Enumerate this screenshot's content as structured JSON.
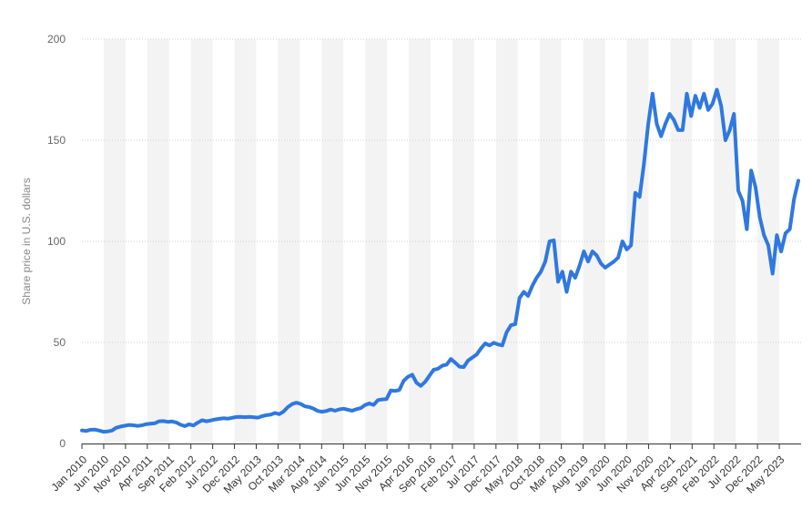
{
  "colors": {
    "line": "#2f78e0",
    "band": "#f3f3f3",
    "grid": "#cfcfcf",
    "axis": "#333333"
  },
  "chart_data": {
    "type": "line",
    "title": "",
    "xlabel": "",
    "ylabel": "Share price in U.S. dollars",
    "ylim": [
      0,
      200
    ],
    "yticks": [
      0,
      50,
      100,
      150,
      200
    ],
    "grid": true,
    "x_tick_labels": [
      "Jan 2010",
      "Jun 2010",
      "Nov 2010",
      "Apr 2011",
      "Sep 2011",
      "Feb 2012",
      "Jul 2012",
      "Dec 2012",
      "May 2013",
      "Oct 2013",
      "Mar 2014",
      "Aug 2014",
      "Jan 2015",
      "Jun 2015",
      "Nov 2015",
      "Apr 2016",
      "Sep 2016",
      "Feb 2017",
      "Jul 2017",
      "Dec 2017",
      "May 2018",
      "Oct 2018",
      "Mar 2019",
      "Aug 2019",
      "Jan 2020",
      "Jun 2020",
      "Nov 2020",
      "Apr 2021",
      "Sep 2021",
      "Feb 2022",
      "Jul 2022",
      "Dec 2022",
      "May 2023"
    ],
    "x_start": "Jan 2010",
    "x_end": "Jul 2023",
    "series": [
      {
        "values": [
          6.5,
          6.2,
          6.8,
          6.9,
          6.4,
          5.8,
          6.0,
          6.4,
          7.8,
          8.4,
          8.8,
          9.2,
          9.0,
          8.7,
          9.0,
          9.6,
          9.8,
          10.0,
          11.0,
          11.1,
          10.7,
          10.9,
          10.4,
          9.3,
          8.6,
          9.5,
          8.9,
          10.3,
          11.5,
          11.0,
          11.4,
          11.9,
          12.2,
          12.5,
          12.3,
          12.7,
          13.1,
          13.2,
          13.0,
          13.2,
          13.0,
          12.8,
          13.5,
          14.0,
          14.3,
          15.1,
          14.5,
          15.8,
          18.0,
          19.5,
          20.2,
          19.6,
          18.4,
          18.0,
          17.2,
          16.1,
          15.7,
          16.1,
          16.8,
          16.2,
          16.9,
          17.2,
          16.7,
          16.2,
          17.0,
          17.5,
          19.0,
          19.8,
          19.1,
          21.5,
          21.8,
          22.0,
          26.2,
          26.0,
          26.5,
          31.0,
          33.0,
          34.0,
          30.0,
          28.5,
          30.5,
          33.5,
          36.5,
          37.0,
          38.5,
          39.0,
          41.8,
          40.0,
          38.0,
          37.8,
          41.0,
          42.5,
          44.0,
          47.0,
          49.5,
          48.5,
          49.8,
          49.0,
          48.5,
          55.0,
          58.5,
          59.0,
          72.0,
          75.0,
          73.0,
          78.0,
          82.0,
          85.0,
          90.0,
          100.0,
          100.5,
          80.0,
          85.0,
          75.0,
          85.0,
          82.0,
          88.0,
          95.0,
          90.0,
          95.0,
          93.0,
          89.0,
          87.0,
          88.5,
          90.0,
          92.0,
          100.0,
          96.0,
          98.0,
          124.0,
          122.0,
          138.0,
          158.0,
          173.0,
          158.0,
          152.0,
          158.0,
          163.0,
          160.0,
          155.0,
          155.0,
          173.0,
          162.0,
          172.0,
          166.0,
          173.0,
          165.0,
          168.0,
          175.0,
          167.0,
          150.0,
          155.0,
          163.0,
          125.0,
          120.0,
          106.0,
          135.0,
          127.0,
          112.0,
          103.0,
          98.0,
          84.0,
          103.0,
          95.0,
          104.0,
          106.0,
          121.0,
          130.0
        ]
      }
    ]
  }
}
